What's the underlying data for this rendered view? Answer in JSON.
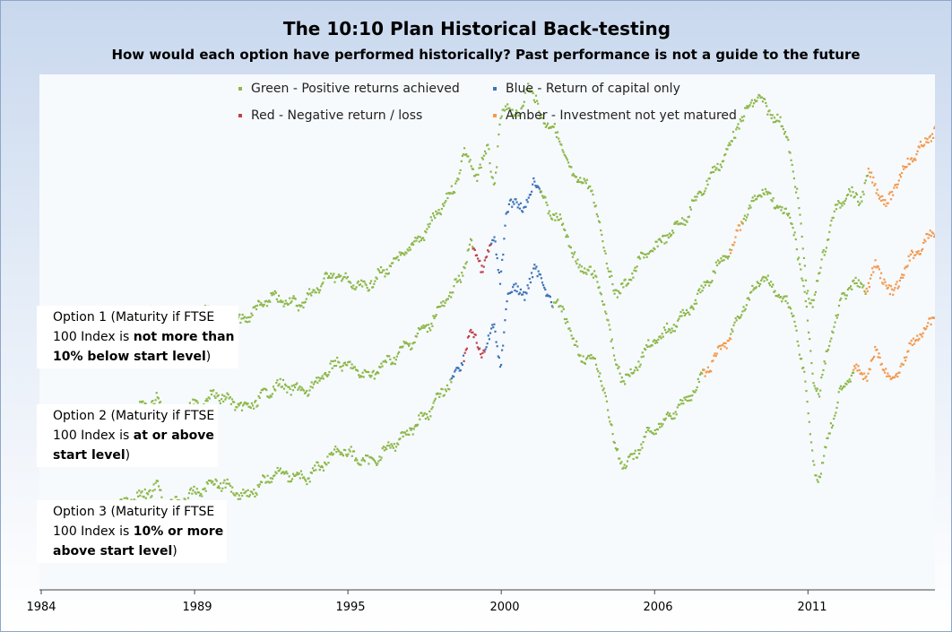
{
  "chart_data": {
    "type": "scatter",
    "title": "The 10:10 Plan Historical Back-testing",
    "subtitle": "How would each option have performed historically? Past performance is not a guide to the future",
    "x_tick_labels": [
      "1984",
      "1989",
      "1995",
      "2000",
      "2006",
      "2011"
    ],
    "xlim": [
      1984,
      2013.2
    ],
    "legend": [
      {
        "label": "Green - Positive returns achieved",
        "color": "#8db84a"
      },
      {
        "label": "Blue - Return of capital only",
        "color": "#3f74b8"
      },
      {
        "label": "Red - Negative return / loss",
        "color": "#c0404a"
      },
      {
        "label": "Amber - Investment not yet matured",
        "color": "#f29a4e"
      }
    ],
    "series_anchors": [
      [
        1984.0,
        0.06
      ],
      [
        1984.5,
        0.07
      ],
      [
        1985.5,
        0.09
      ],
      [
        1986.5,
        0.13
      ],
      [
        1987.6,
        0.19
      ],
      [
        1987.9,
        0.13
      ],
      [
        1988.5,
        0.15
      ],
      [
        1989.5,
        0.21
      ],
      [
        1990.5,
        0.16
      ],
      [
        1991.5,
        0.24
      ],
      [
        1992.5,
        0.22
      ],
      [
        1993.5,
        0.32
      ],
      [
        1994.5,
        0.27
      ],
      [
        1995.5,
        0.35
      ],
      [
        1996.5,
        0.45
      ],
      [
        1997.5,
        0.6
      ],
      [
        1997.8,
        0.72
      ],
      [
        1998.2,
        0.64
      ],
      [
        1998.6,
        0.73
      ],
      [
        1998.8,
        0.6
      ],
      [
        1999.0,
        0.82
      ],
      [
        1999.3,
        0.88
      ],
      [
        1999.6,
        0.82
      ],
      [
        1999.9,
        0.95
      ],
      [
        2000.3,
        0.84
      ],
      [
        2000.7,
        0.8
      ],
      [
        2001.0,
        0.74
      ],
      [
        2001.4,
        0.62
      ],
      [
        2001.7,
        0.64
      ],
      [
        2002.2,
        0.52
      ],
      [
        2002.5,
        0.33
      ],
      [
        2002.8,
        0.26
      ],
      [
        2003.1,
        0.28
      ],
      [
        2003.5,
        0.36
      ],
      [
        2004.2,
        0.42
      ],
      [
        2005.0,
        0.5
      ],
      [
        2005.8,
        0.63
      ],
      [
        2006.4,
        0.72
      ],
      [
        2006.8,
        0.82
      ],
      [
        2007.1,
        0.86
      ],
      [
        2007.4,
        0.91
      ],
      [
        2007.7,
        0.85
      ],
      [
        2008.0,
        0.84
      ],
      [
        2008.4,
        0.75
      ],
      [
        2008.7,
        0.56
      ],
      [
        2009.0,
        0.27
      ],
      [
        2009.2,
        0.21
      ],
      [
        2009.5,
        0.38
      ],
      [
        2009.9,
        0.52
      ],
      [
        2010.3,
        0.59
      ],
      [
        2010.7,
        0.56
      ],
      [
        2011.0,
        0.64
      ],
      [
        2011.3,
        0.6
      ],
      [
        2011.6,
        0.54
      ],
      [
        2012.0,
        0.64
      ],
      [
        2012.5,
        0.71
      ],
      [
        2012.9,
        0.75
      ],
      [
        2013.3,
        0.82
      ],
      [
        2013.6,
        0.86
      ],
      [
        2013.9,
        0.8
      ],
      [
        2014.2,
        0.81
      ],
      [
        2014.4,
        0.7
      ]
    ],
    "series": [
      {
        "label": "Option 1 (Maturity if FTSE 100 Index is not more than 10% below start level)",
        "segments": [
          {
            "from": 1984.0,
            "to": 2011.0,
            "color": "green"
          },
          {
            "from": 2011.0,
            "to": 2014.4,
            "color": "amber"
          }
        ]
      },
      {
        "label": "Option 2 (Maturity if FTSE 100 Index is at or above start level)",
        "segments": [
          {
            "from": 1984.0,
            "to": 1997.9,
            "color": "green"
          },
          {
            "from": 1997.9,
            "to": 1998.5,
            "color": "red"
          },
          {
            "from": 1998.5,
            "to": 2000.1,
            "color": "blue"
          },
          {
            "from": 2000.1,
            "to": 2006.3,
            "color": "green"
          },
          {
            "from": 2006.3,
            "to": 2006.7,
            "color": "amber"
          },
          {
            "from": 2006.7,
            "to": 2010.7,
            "color": "green"
          },
          {
            "from": 2010.7,
            "to": 2014.4,
            "color": "amber"
          }
        ]
      },
      {
        "label": "Option 3 (Maturity if FTSE 100 Index is 10% or more above start level)",
        "segments": [
          {
            "from": 1984.0,
            "to": 1997.2,
            "color": "green"
          },
          {
            "from": 1997.2,
            "to": 1997.6,
            "color": "blue"
          },
          {
            "from": 1997.6,
            "to": 1998.3,
            "color": "red"
          },
          {
            "from": 1998.3,
            "to": 2000.5,
            "color": "blue"
          },
          {
            "from": 2000.5,
            "to": 2005.4,
            "color": "green"
          },
          {
            "from": 2005.4,
            "to": 2006.3,
            "color": "amber"
          },
          {
            "from": 2006.3,
            "to": 2010.3,
            "color": "green"
          },
          {
            "from": 2010.3,
            "to": 2014.4,
            "color": "amber"
          }
        ]
      }
    ]
  },
  "option_labels": [
    {
      "pre": "Option 1 (Maturity if FTSE",
      "mid": "100 Index is ",
      "bold1": "not more than",
      "bold2": "10% below start level",
      "post": ")"
    },
    {
      "pre": "Option 2 (Maturity if FTSE",
      "mid": "100 Index is ",
      "bold1": "at or above",
      "bold2": "start level",
      "post": ")"
    },
    {
      "pre": "Option 3 (Maturity if FTSE",
      "mid": "100 Index is ",
      "bold1": "10% or more",
      "bold2": "above start level",
      "post": ")"
    }
  ]
}
